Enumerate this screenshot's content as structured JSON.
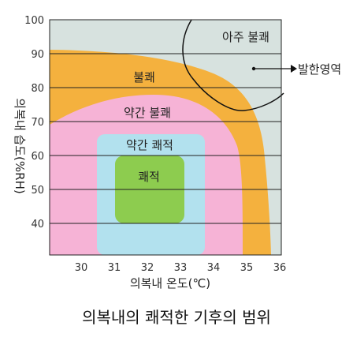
{
  "title": "의복내의 쾌적한 기후의 범위",
  "x_axis": {
    "label": "의복내 온도(℃)",
    "ticks": [
      "30",
      "31",
      "32",
      "33",
      "34",
      "35",
      "36"
    ]
  },
  "y_axis": {
    "label": "의복내 습도(%RH)",
    "ticks": [
      "100",
      "90",
      "80",
      "70",
      "60",
      "50",
      "40"
    ]
  },
  "zones": {
    "very_uncomfortable": "아주 불쾌",
    "uncomfortable": "불쾌",
    "slightly_uncomfortable": "약간 불쾌",
    "slightly_comfortable": "약간 쾌적",
    "comfortable": "쾌적"
  },
  "callout": "발한영역",
  "colors": {
    "very_uncomfortable": "#d7e2df",
    "uncomfortable": "#f4b13e",
    "slightly_uncomfortable": "#f6b3d6",
    "slightly_comfortable": "#b2e1ee",
    "comfortable": "#8dcc4f",
    "grid": "#222222"
  }
}
